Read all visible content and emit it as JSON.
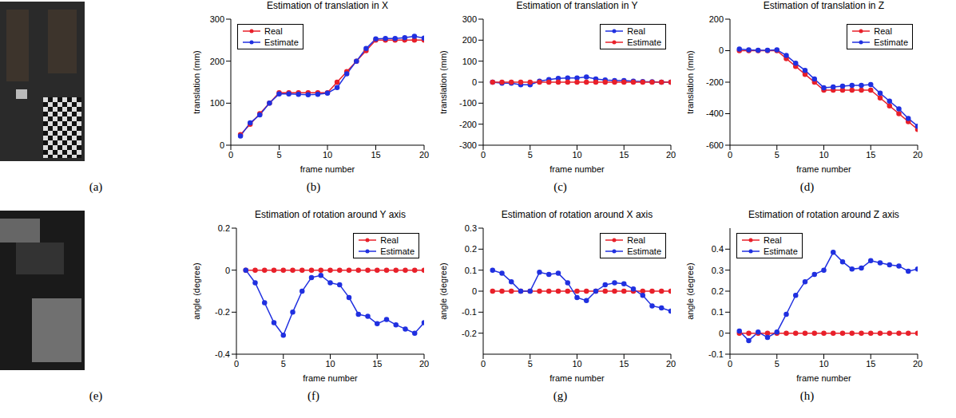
{
  "images": [
    {
      "caption": "(a)"
    },
    {
      "caption": "(e)"
    }
  ],
  "chart_data": [
    {
      "type": "line",
      "caption": "(b)",
      "title": "Estimation of translation in X",
      "x_label": "frame number",
      "y_label": "translation (mm)",
      "xlim": [
        0,
        20
      ],
      "xticks": [
        0,
        5,
        10,
        15,
        20
      ],
      "ylim": [
        0,
        300
      ],
      "yticks": [
        0,
        100,
        200,
        300
      ],
      "grid": false,
      "legend": "upper left",
      "x": [
        1,
        2,
        3,
        4,
        5,
        6,
        7,
        8,
        9,
        10,
        11,
        12,
        13,
        14,
        15,
        16,
        17,
        18,
        19,
        20
      ],
      "series": [
        {
          "name": "Real",
          "color": "#e8202a",
          "marker": "o",
          "line_style": "solid",
          "values": [
            25,
            50,
            75,
            100,
            125,
            125,
            125,
            125,
            125,
            125,
            150,
            175,
            200,
            225,
            250,
            250,
            250,
            250,
            250,
            250
          ]
        },
        {
          "name": "Estimate",
          "color": "#2030e0",
          "marker": "o",
          "line_style": "solid",
          "values": [
            22,
            53,
            72,
            100,
            122,
            122,
            121,
            120,
            121,
            124,
            137,
            170,
            200,
            230,
            253,
            254,
            254,
            256,
            259,
            255
          ]
        }
      ]
    },
    {
      "type": "line",
      "caption": "(c)",
      "title": "Estimation of translation in Y",
      "x_label": "frame number",
      "y_label": "translation (mm)",
      "xlim": [
        0,
        20
      ],
      "xticks": [
        0,
        5,
        10,
        15,
        20
      ],
      "ylim": [
        -300,
        300
      ],
      "yticks": [
        -300,
        -200,
        -100,
        0,
        100,
        200,
        300
      ],
      "grid": false,
      "legend": "upper right",
      "x": [
        1,
        2,
        3,
        4,
        5,
        6,
        7,
        8,
        9,
        10,
        11,
        12,
        13,
        14,
        15,
        16,
        17,
        18,
        19,
        20
      ],
      "series": [
        {
          "name": "Real",
          "color": "#2030e0",
          "marker": "o",
          "line_style": "solid",
          "values": [
            0,
            -5,
            -5,
            -12,
            -12,
            5,
            12,
            18,
            20,
            20,
            25,
            15,
            10,
            8,
            8,
            5,
            3,
            2,
            0,
            0
          ]
        },
        {
          "name": "Estimate",
          "color": "#e8202a",
          "marker": "o",
          "line_style": "solid",
          "values": [
            0,
            0,
            0,
            0,
            0,
            0,
            0,
            0,
            0,
            0,
            0,
            0,
            0,
            0,
            0,
            0,
            0,
            0,
            0,
            0
          ]
        }
      ]
    },
    {
      "type": "line",
      "caption": "(d)",
      "title": "Estimation of translation in Z",
      "x_label": "frame number",
      "y_label": "translation (mm)",
      "xlim": [
        0,
        20
      ],
      "xticks": [
        0,
        5,
        10,
        15,
        20
      ],
      "ylim": [
        -600,
        200
      ],
      "yticks": [
        -600,
        -400,
        -200,
        0,
        200
      ],
      "grid": false,
      "legend": "upper right",
      "x": [
        1,
        2,
        3,
        4,
        5,
        6,
        7,
        8,
        9,
        10,
        11,
        12,
        13,
        14,
        15,
        16,
        17,
        18,
        19,
        20
      ],
      "series": [
        {
          "name": "Real",
          "color": "#e8202a",
          "marker": "o",
          "line_style": "solid",
          "values": [
            0,
            0,
            0,
            0,
            0,
            -50,
            -100,
            -150,
            -200,
            -250,
            -250,
            -250,
            -250,
            -250,
            -250,
            -300,
            -350,
            -400,
            -450,
            -500
          ]
        },
        {
          "name": "Estimate",
          "color": "#2030e0",
          "marker": "o",
          "line_style": "solid",
          "values": [
            10,
            5,
            3,
            2,
            5,
            -30,
            -80,
            -125,
            -180,
            -235,
            -230,
            -225,
            -220,
            -220,
            -215,
            -270,
            -320,
            -370,
            -430,
            -480
          ]
        }
      ]
    },
    {
      "type": "line",
      "caption": "(f)",
      "title": "Estimation of rotation around Y axis",
      "x_label": "frame number",
      "y_label": "angle (degree)",
      "xlim": [
        0,
        20
      ],
      "xticks": [
        0,
        5,
        10,
        15,
        20
      ],
      "ylim": [
        -0.4,
        0.2
      ],
      "yticks": [
        -0.4,
        -0.2,
        0,
        0.2
      ],
      "grid": false,
      "legend": "upper right",
      "x": [
        1,
        2,
        3,
        4,
        5,
        6,
        7,
        8,
        9,
        10,
        11,
        12,
        13,
        14,
        15,
        16,
        17,
        18,
        19,
        20
      ],
      "series": [
        {
          "name": "Real",
          "color": "#e8202a",
          "marker": "o",
          "line_style": "solid",
          "values": [
            0,
            0,
            0,
            0,
            0,
            0,
            0,
            0,
            0,
            0,
            0,
            0,
            0,
            0,
            0,
            0,
            0,
            0,
            0,
            0
          ]
        },
        {
          "name": "Estimate",
          "color": "#2030e0",
          "marker": "o",
          "line_style": "solid",
          "values": [
            0,
            -0.06,
            -0.155,
            -0.25,
            -0.31,
            -0.2,
            -0.1,
            -0.035,
            -0.025,
            -0.06,
            -0.07,
            -0.13,
            -0.21,
            -0.22,
            -0.255,
            -0.235,
            -0.26,
            -0.28,
            -0.3,
            -0.25
          ]
        }
      ]
    },
    {
      "type": "line",
      "caption": "(g)",
      "title": "Estimation of rotation around X axis",
      "x_label": "frame number",
      "y_label": "angle (degree)",
      "xlim": [
        0,
        20
      ],
      "xticks": [
        0,
        5,
        10,
        15,
        20
      ],
      "ylim": [
        -0.3,
        0.3
      ],
      "yticks": [
        -0.2,
        -0.1,
        0,
        0.1,
        0.2,
        0.3
      ],
      "grid": false,
      "legend": "upper right",
      "x": [
        1,
        2,
        3,
        4,
        5,
        6,
        7,
        8,
        9,
        10,
        11,
        12,
        13,
        14,
        15,
        16,
        17,
        18,
        19,
        20
      ],
      "series": [
        {
          "name": "Real",
          "color": "#e8202a",
          "marker": "o",
          "line_style": "solid",
          "values": [
            0,
            0,
            0,
            0,
            0,
            0,
            0,
            0,
            0,
            0,
            0,
            0,
            0,
            0,
            0,
            0,
            0,
            0,
            0,
            0
          ]
        },
        {
          "name": "Estimate",
          "color": "#2030e0",
          "marker": "o",
          "line_style": "solid",
          "values": [
            0.1,
            0.085,
            0.045,
            0,
            0,
            0.09,
            0.08,
            0.085,
            0.04,
            -0.03,
            -0.045,
            0,
            0.03,
            0.04,
            0.035,
            0.01,
            -0.02,
            -0.07,
            -0.08,
            -0.095
          ]
        }
      ]
    },
    {
      "type": "line",
      "caption": "(h)",
      "title": "Estimation of rotation around Z axis",
      "x_label": "frame number",
      "y_label": "angle (degree)",
      "xlim": [
        0,
        20
      ],
      "xticks": [
        0,
        5,
        10,
        15,
        20
      ],
      "ylim": [
        -0.1,
        0.5
      ],
      "yticks": [
        -0.1,
        0,
        0.1,
        0.2,
        0.3,
        0.4
      ],
      "grid": false,
      "legend": "upper left",
      "x": [
        1,
        2,
        3,
        4,
        5,
        6,
        7,
        8,
        9,
        10,
        11,
        12,
        13,
        14,
        15,
        16,
        17,
        18,
        19,
        20
      ],
      "series": [
        {
          "name": "Real",
          "color": "#e8202a",
          "marker": "o",
          "line_style": "solid",
          "values": [
            0,
            0,
            0,
            0,
            0,
            0,
            0,
            0,
            0,
            0,
            0,
            0,
            0,
            0,
            0,
            0,
            0,
            0,
            0,
            0
          ]
        },
        {
          "name": "Estimate",
          "color": "#2030e0",
          "marker": "o",
          "line_style": "solid",
          "values": [
            0.01,
            -0.035,
            0.005,
            -0.02,
            0.005,
            0.09,
            0.18,
            0.245,
            0.28,
            0.3,
            0.385,
            0.34,
            0.305,
            0.31,
            0.345,
            0.335,
            0.325,
            0.32,
            0.295,
            0.305
          ]
        }
      ]
    }
  ]
}
